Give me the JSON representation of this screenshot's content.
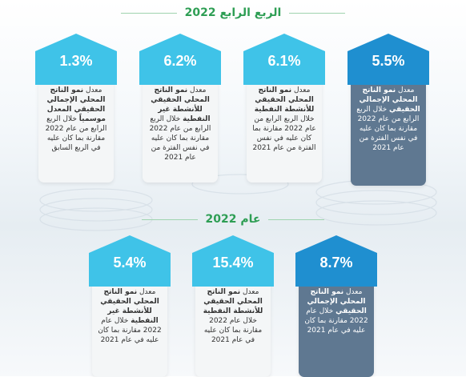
{
  "quarter": {
    "title": "الربع الرابع 2022",
    "cards": [
      {
        "value": "1.3%",
        "pre": "معدل",
        "bold": "نمو الناتج المحلي الإجمالي الحقيقي المعدل موسمياً",
        "post": "خلال الربع الرابع من عام 2022 مقارنة بما كان عليه في الربع السابق",
        "style": "light",
        "color": "#3fc3e8"
      },
      {
        "value": "6.2%",
        "pre": "معدل",
        "bold": "نمو الناتج المحلي الحقيقي للأنشطة غير النفطية",
        "post": "خلال الربع الرابع من عام 2022 مقارنة بما كان عليه في نفس الفترة من عام 2021",
        "style": "light",
        "color": "#3fc3e8"
      },
      {
        "value": "6.1%",
        "pre": "معدل",
        "bold": "نمو الناتج المحلي الحقيقي للأنشطة النفطية",
        "post": "خلال الربع الرابع من عام 2022 مقارنة بما كان عليه في نفس الفترة من عام 2021",
        "style": "light",
        "color": "#3fc3e8"
      },
      {
        "value": "5.5%",
        "pre": "معدل",
        "bold": "نمو الناتج المحلي الإجمالي الحقيقي",
        "post": "خلال الربع الرابع من عام 2022 مقارنة بما كان عليه في نفس الفترة من عام 2021",
        "style": "dark",
        "color": "#1f8fd0"
      }
    ]
  },
  "year": {
    "title": "عام 2022",
    "cards": [
      {
        "value": "5.4%",
        "pre": "معدل",
        "bold": "نمو الناتج المحلي الحقيقي للأنشطة غير النفطية",
        "post": "خلال عام 2022 مقارنة بما كان عليه في عام 2021",
        "style": "light",
        "color": "#3fc3e8"
      },
      {
        "value": "15.4%",
        "pre": "معدل",
        "bold": "نمو الناتج المحلي الحقيقي للأنشطة النفطية",
        "post": "خلال عام 2022 مقارنة بما كان عليه في عام 2021",
        "style": "light",
        "color": "#3fc3e8"
      },
      {
        "value": "8.7%",
        "pre": "معدل",
        "bold": "نمو الناتج المحلي الإجمالي الحقيقي",
        "post": "خلال عام 2022 مقارنة بما كان عليه في عام 2021",
        "style": "dark",
        "color": "#1f8fd0"
      }
    ]
  }
}
